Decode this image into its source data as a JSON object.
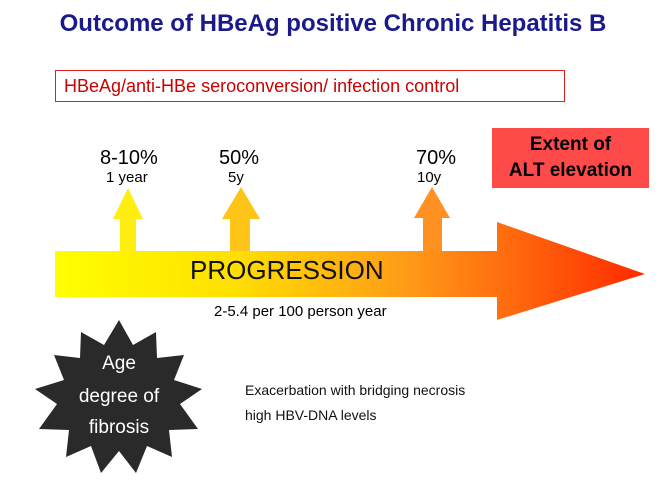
{
  "title": "Outcome of HBeAg positive Chronic Hepatitis B",
  "subtitle": "HBeAg/anti-HBe seroconversion/  infection control",
  "alt_box": {
    "line1": "Extent of",
    "line2": "ALT elevation"
  },
  "milestones": [
    {
      "percent": "8-10%",
      "time": "1  year"
    },
    {
      "percent": "50%",
      "time": "5y"
    },
    {
      "percent": "70%",
      "time": "10y"
    }
  ],
  "progression": {
    "label": "PROGRESSION",
    "rate": "2-5.4 per 100 person year"
  },
  "risk_star": {
    "line1": "Age",
    "line2": "degree  of",
    "line3": "fibrosis"
  },
  "notes": {
    "line1": "Exacerbation with bridging necrosis",
    "line2": "high HBV-DNA levels"
  },
  "colors": {
    "title": "#1a1a8c",
    "subtitle": "#cc0000",
    "alt_box": "#ff4a4a",
    "star": "#2a2a2a"
  }
}
